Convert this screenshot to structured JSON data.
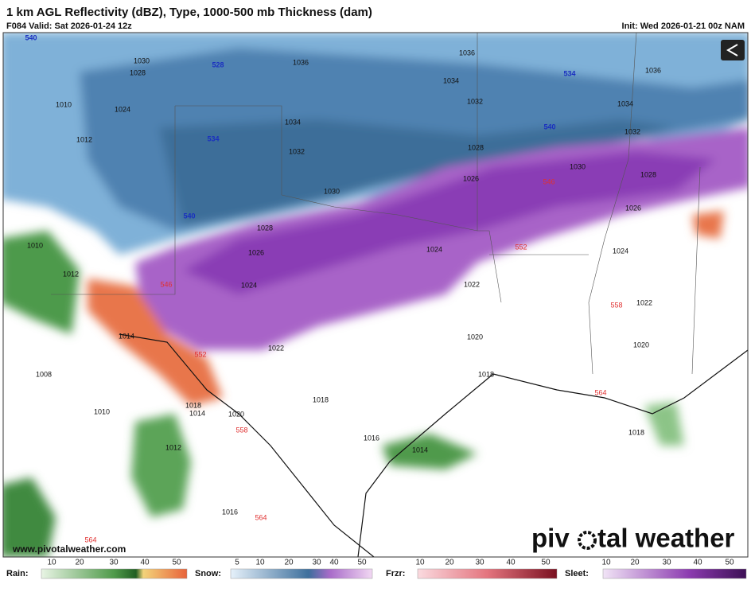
{
  "header": {
    "title": "1 km AGL Reflectivity (dBZ), Type, 1000-500 mb Thickness (dam)",
    "valid": "F084 Valid: Sat 2026-01-24 12z",
    "init": "Init: Wed 2026-01-21 00z NAM"
  },
  "map": {
    "pressure_labels": [
      "1030",
      "1028",
      "1036",
      "1036",
      "1034",
      "1032",
      "1034",
      "1036",
      "1010",
      "1024",
      "1034",
      "1032",
      "1012",
      "1028",
      "1030",
      "1032",
      "1028",
      "1026",
      "1030",
      "1026",
      "1028",
      "1024",
      "1024",
      "1026",
      "1010",
      "1012",
      "1024",
      "1022",
      "1022",
      "1014",
      "1022",
      "1020",
      "1020",
      "1008",
      "1018",
      "1018",
      "1014",
      "1020",
      "1018",
      "1010",
      "1016",
      "1014",
      "1012",
      "1018",
      "1016"
    ],
    "thickness_labels_cold": [
      "540",
      "528",
      "534",
      "534",
      "540",
      "540"
    ],
    "thickness_labels_warm": [
      "546",
      "552",
      "546",
      "558",
      "552",
      "564",
      "558",
      "564",
      "564"
    ]
  },
  "watermark": "www.pivotalweather.com",
  "logo": {
    "left": "piv",
    "right": "tal weather"
  },
  "legend": [
    {
      "label": "Rain:",
      "ticks": [
        "10",
        "20",
        "30",
        "40",
        "50"
      ]
    },
    {
      "label": "Snow:",
      "ticks": [
        "5",
        "10",
        "20",
        "30",
        "40",
        "50"
      ]
    },
    {
      "label": "Frzr:",
      "ticks": [
        "10",
        "20",
        "30",
        "40",
        "50"
      ]
    },
    {
      "label": "Sleet:",
      "ticks": [
        "10",
        "20",
        "30",
        "40",
        "50"
      ]
    }
  ]
}
